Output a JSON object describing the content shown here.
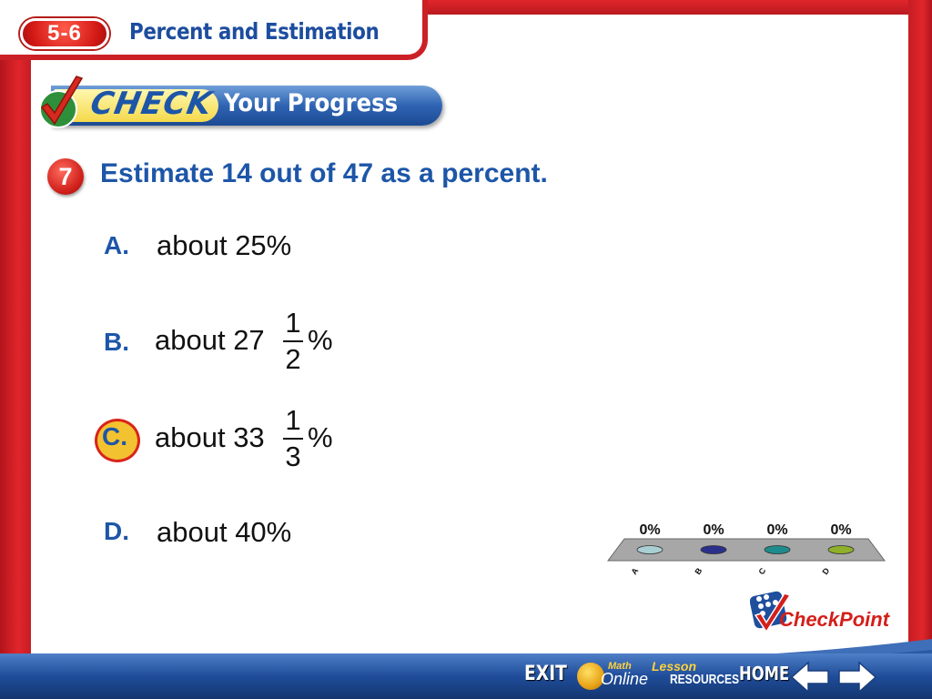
{
  "header": {
    "lesson_number": "5-6",
    "lesson_title": "Percent and Estimation"
  },
  "banner": {
    "check": "CHECK",
    "your_progress": "Your Progress"
  },
  "question": {
    "number": "7",
    "text": "Estimate 14 out of 47 as a percent."
  },
  "options": [
    {
      "letter": "A.",
      "text": "about 25%"
    },
    {
      "letter": "B.",
      "whole": "about 27",
      "numerator": "1",
      "denominator": "2",
      "suffix": "%"
    },
    {
      "letter": "C.",
      "whole": "about 33",
      "numerator": "1",
      "denominator": "3",
      "suffix": "%",
      "selected": true
    },
    {
      "letter": "D.",
      "text": "about 40%"
    }
  ],
  "response_chart": {
    "type": "bar",
    "categories": [
      "A",
      "B",
      "C",
      "D"
    ],
    "values": [
      0,
      0,
      0,
      0
    ],
    "value_labels": [
      "0%",
      "0%",
      "0%",
      "0%"
    ],
    "colors": [
      "#a9cfd4",
      "#2b2f8c",
      "#1e8c8c",
      "#8fb02a"
    ]
  },
  "checkpoint": {
    "label_a": "Check",
    "label_b": "Point"
  },
  "nav": {
    "exit": "EXIT",
    "math": "Math",
    "online": "Online",
    "lesson": "Lesson",
    "resources": "RESOURCES",
    "home": "HOME"
  },
  "colors": {
    "frame_red": "#cc2027",
    "title_blue": "#1d56a8",
    "answer_highlight": "#f2c230"
  }
}
